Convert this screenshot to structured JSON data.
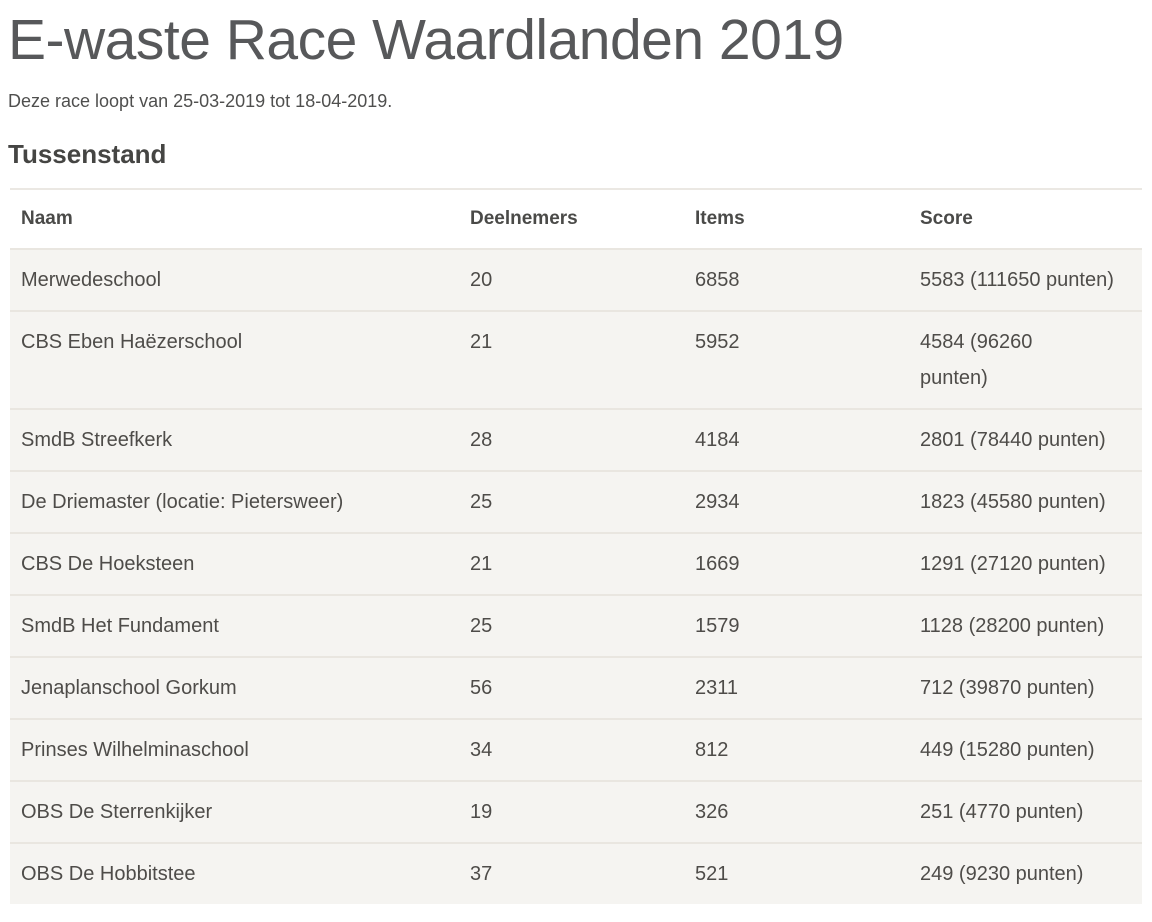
{
  "page": {
    "title": "E-waste Race Waardlanden 2019",
    "subtitle": "Deze race loopt van 25-03-2019 tot 18-04-2019.",
    "section_title": "Tussenstand"
  },
  "colors": {
    "title_gray": "#57585a",
    "heading_dark": "#454543",
    "cell_text": "#4e4c49",
    "row_background": "#f5f4f1",
    "row_separator": "#e9e6e0",
    "table_top_border": "#ebe8e3"
  },
  "table": {
    "headers": {
      "naam": "Naam",
      "deelnemers": "Deelnemers",
      "items": "Items",
      "score": "Score"
    },
    "rows": [
      {
        "naam": "Merwedeschool",
        "deelnemers": "20",
        "items": "6858",
        "score": "5583 (111650 punten)"
      },
      {
        "naam": "CBS Eben Haëzerschool",
        "deelnemers": "21",
        "items": "5952",
        "score": "4584 (96260\npunten)"
      },
      {
        "naam": "SmdB Streefkerk",
        "deelnemers": "28",
        "items": "4184",
        "score": "2801 (78440 punten)"
      },
      {
        "naam": "De Driemaster (locatie: Pietersweer)",
        "deelnemers": "25",
        "items": "2934",
        "score": "1823 (45580 punten)"
      },
      {
        "naam": "CBS De Hoeksteen",
        "deelnemers": "21",
        "items": "1669",
        "score": "1291 (27120 punten)"
      },
      {
        "naam": "SmdB Het Fundament",
        "deelnemers": "25",
        "items": "1579",
        "score": "1128 (28200 punten)"
      },
      {
        "naam": "Jenaplanschool Gorkum",
        "deelnemers": "56",
        "items": "2311",
        "score": "712 (39870 punten)"
      },
      {
        "naam": "Prinses Wilhelminaschool",
        "deelnemers": "34",
        "items": "812",
        "score": "449 (15280 punten)"
      },
      {
        "naam": "OBS De Sterrenkijker",
        "deelnemers": "19",
        "items": "326",
        "score": "251 (4770 punten)"
      },
      {
        "naam": "OBS De Hobbitstee",
        "deelnemers": "37",
        "items": "521",
        "score": "249 (9230 punten)"
      }
    ]
  }
}
